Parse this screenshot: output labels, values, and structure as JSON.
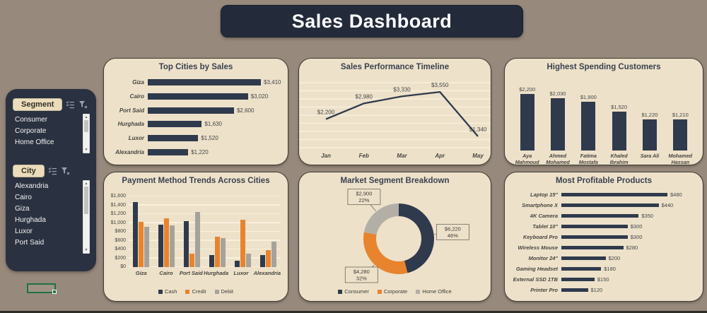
{
  "title": "Sales Dashboard",
  "slicers": [
    {
      "header": "Segment",
      "items": [
        "Consumer",
        "Corporate",
        "Home Office"
      ]
    },
    {
      "header": "City",
      "items": [
        "Alexandria",
        "Cairo",
        "Giza",
        "Hurghada",
        "Luxor",
        "Port Said"
      ]
    }
  ],
  "colors": {
    "background": "#97897B",
    "card": "#EDE1C9",
    "dark": "#2F3A4D",
    "orange": "#E8842D",
    "gray": "#A5A29B",
    "donut_gray": "#B3AFA7",
    "grid": "#F8F0DD",
    "label": "#45464A",
    "leader": "#6a6a60"
  },
  "chart_data": [
    {
      "id": "top-cities",
      "type": "bar",
      "orientation": "horizontal",
      "title": "Top Cities by Sales",
      "categories": [
        "Giza",
        "Cairo",
        "Port Said",
        "Hurghada",
        "Luxor",
        "Alexandria"
      ],
      "values": [
        3410,
        3020,
        2600,
        1630,
        1520,
        1220
      ],
      "labels": [
        "$3,410",
        "$3,020",
        "$2,600",
        "$1,630",
        "$1,520",
        "$1,220"
      ],
      "xlim": [
        0,
        3410
      ]
    },
    {
      "id": "timeline",
      "type": "line",
      "title": "Sales Performance Timeline",
      "x": [
        "Jan",
        "Feb",
        "Mar",
        "Apr",
        "May"
      ],
      "values": [
        2200,
        2980,
        3330,
        3550,
        1340
      ],
      "labels": [
        "$2,200",
        "$2,980",
        "$3,330",
        "$3,550",
        "$1,340"
      ],
      "ylim": [
        1200,
        3800
      ],
      "grid": true
    },
    {
      "id": "customers",
      "type": "bar",
      "orientation": "vertical",
      "title": "Highest Spending Customers",
      "categories": [
        "Aya Mahmoud",
        "Ahmed Mohamed",
        "Fatima Mostafa",
        "Khaled Ibrahim",
        "Sara Ali",
        "Mohamed Hassan"
      ],
      "values": [
        2200,
        2030,
        1900,
        1520,
        1220,
        1210
      ],
      "labels": [
        "$2,200",
        "$2,030",
        "$1,900",
        "$1,520",
        "$1,220",
        "$1,210"
      ],
      "ylim": [
        0,
        2200
      ]
    },
    {
      "id": "payment",
      "type": "bar",
      "orientation": "vertical-grouped",
      "title": "Payment Method Trends Across Cities",
      "categories": [
        "Giza",
        "Cairo",
        "Port Said",
        "Hurghada",
        "Luxor",
        "Alexandria"
      ],
      "series": [
        {
          "name": "Cash",
          "color": "#2F3A4D",
          "values": [
            1470,
            960,
            1040,
            280,
            150,
            270
          ]
        },
        {
          "name": "Credit",
          "color": "#E8842D",
          "values": [
            1030,
            1110,
            310,
            690,
            1070,
            380
          ]
        },
        {
          "name": "Debit",
          "color": "#A5A29B",
          "values": [
            910,
            950,
            1250,
            660,
            300,
            570
          ]
        }
      ],
      "ylim": [
        0,
        1600
      ],
      "yticks": [
        "$0",
        "$200",
        "$400",
        "$600",
        "$800",
        "$1,000",
        "$1,200",
        "$1,400",
        "$1,600"
      ],
      "legend_position": "bottom"
    },
    {
      "id": "segments",
      "type": "pie",
      "subtype": "donut",
      "title": "Market Segment Breakdown",
      "slices": [
        {
          "name": "Consumer",
          "value": 6220,
          "pct": 46,
          "label_line1": "$6,220",
          "label_line2": "46%",
          "color": "#2F3A4D"
        },
        {
          "name": "Corporate",
          "value": 4280,
          "pct": 32,
          "label_line1": "$4,280",
          "label_line2": "32%",
          "color": "#E8842D"
        },
        {
          "name": "Home Office",
          "value": 2900,
          "pct": 22,
          "label_line1": "$2,900",
          "label_line2": "22%",
          "color": "#B3AFA7"
        }
      ],
      "legend_position": "bottom"
    },
    {
      "id": "products",
      "type": "bar",
      "orientation": "horizontal",
      "title": "Most Profitable Products",
      "categories": [
        "Laptop 15\"",
        "Smartphone X",
        "4K Camera",
        "Tablet 10\"",
        "Keyboard Pro",
        "Wireless Mouse",
        "Monitor 24\"",
        "Gaming Headset",
        "External SSD 1TB",
        "Printer Pro"
      ],
      "values": [
        480,
        440,
        350,
        300,
        300,
        280,
        200,
        180,
        150,
        120
      ],
      "labels": [
        "$480",
        "$440",
        "$350",
        "$300",
        "$300",
        "$280",
        "$200",
        "$180",
        "$150",
        "$120"
      ],
      "xlim": [
        0,
        480
      ]
    }
  ]
}
